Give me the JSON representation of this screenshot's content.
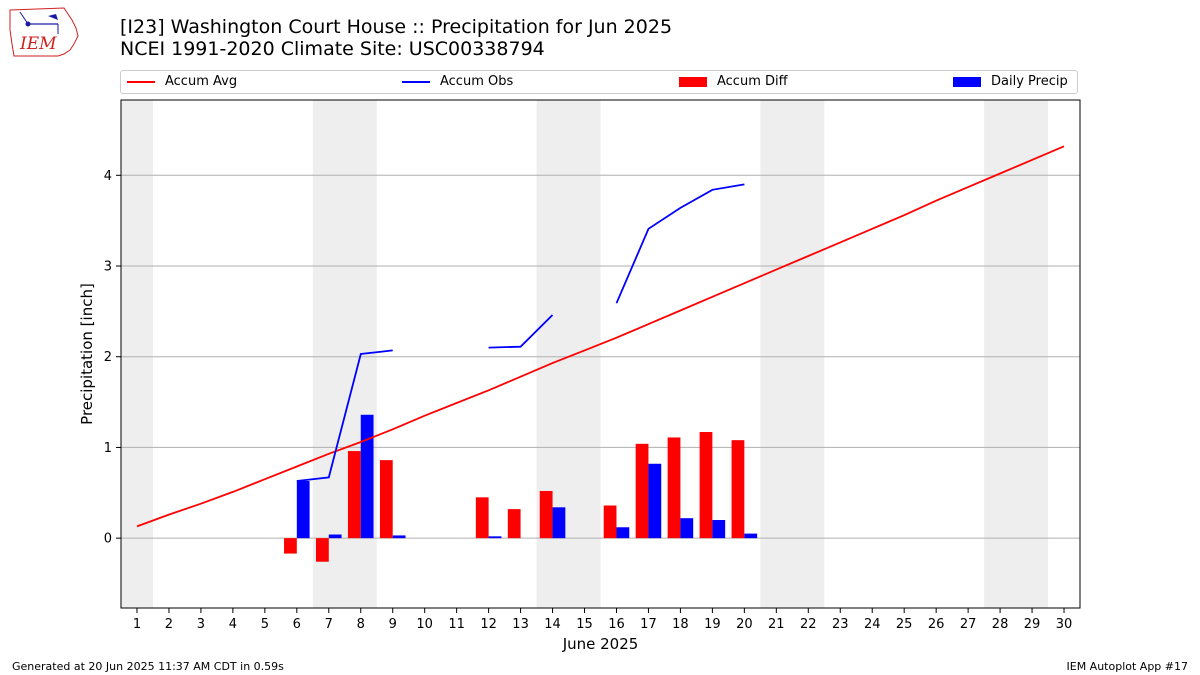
{
  "header": {
    "logo_text": "IEM",
    "title_line1": "[I23] Washington Court House :: Precipitation for Jun 2025",
    "title_line2": "NCEI 1991-2020 Climate Site: USC00338794"
  },
  "footer": {
    "left": "Generated at 20 Jun 2025 11:37 AM CDT in 0.59s",
    "right": "IEM Autoplot App #17"
  },
  "colors": {
    "accum_avg": "#ff0000",
    "accum_obs": "#0000ff",
    "accum_diff": "#ff0000",
    "daily_precip": "#0000ff",
    "weekend_shade": "#eeeeee",
    "grid": "#b0b0b0"
  },
  "chart_data": {
    "type": "bar+line",
    "xlabel": "June 2025",
    "ylabel": "Precipitation [inch]",
    "xlim": [
      0.5,
      30.5
    ],
    "ylim": [
      -0.77,
      4.83
    ],
    "yticks": [
      0,
      1,
      2,
      3,
      4
    ],
    "grid": "y",
    "legend_position": "top",
    "legend": [
      {
        "label": "Accum Avg",
        "kind": "line",
        "color": "#ff0000"
      },
      {
        "label": "Accum Obs",
        "kind": "line",
        "color": "#0000ff"
      },
      {
        "label": "Accum Diff",
        "kind": "bar",
        "color": "#ff0000"
      },
      {
        "label": "Daily Precip",
        "kind": "bar",
        "color": "#0000ff"
      }
    ],
    "days": [
      1,
      2,
      3,
      4,
      5,
      6,
      7,
      8,
      9,
      10,
      11,
      12,
      13,
      14,
      15,
      16,
      17,
      18,
      19,
      20,
      21,
      22,
      23,
      24,
      25,
      26,
      27,
      28,
      29,
      30
    ],
    "weekend_spans": [
      [
        0.5,
        1.5
      ],
      [
        6.5,
        8.5
      ],
      [
        13.5,
        15.5
      ],
      [
        20.5,
        22.5
      ],
      [
        27.5,
        29.5
      ]
    ],
    "accum_avg": [
      0.13,
      0.26,
      0.38,
      0.51,
      0.65,
      0.79,
      0.93,
      1.06,
      1.2,
      1.35,
      1.49,
      1.63,
      1.78,
      1.93,
      2.07,
      2.21,
      2.36,
      2.51,
      2.66,
      2.81,
      2.96,
      3.11,
      3.26,
      3.41,
      3.56,
      3.72,
      3.87,
      4.02,
      4.17,
      4.32
    ],
    "accum_obs_segments": [
      [
        [
          6,
          0.63
        ],
        [
          7,
          0.67
        ],
        [
          8,
          2.03
        ],
        [
          9,
          2.07
        ]
      ],
      [
        [
          12,
          2.1
        ],
        [
          13,
          2.11
        ],
        [
          14,
          2.46
        ]
      ],
      [
        [
          16,
          2.59
        ],
        [
          17,
          3.41
        ],
        [
          18,
          3.64
        ],
        [
          19,
          3.84
        ],
        [
          20,
          3.9
        ]
      ]
    ],
    "accum_diff": [
      {
        "day": 6,
        "value": -0.17
      },
      {
        "day": 7,
        "value": -0.26
      },
      {
        "day": 8,
        "value": 0.96
      },
      {
        "day": 9,
        "value": 0.86
      },
      {
        "day": 12,
        "value": 0.45
      },
      {
        "day": 13,
        "value": 0.32
      },
      {
        "day": 14,
        "value": 0.52
      },
      {
        "day": 16,
        "value": 0.36
      },
      {
        "day": 17,
        "value": 1.04
      },
      {
        "day": 18,
        "value": 1.11
      },
      {
        "day": 19,
        "value": 1.17
      },
      {
        "day": 20,
        "value": 1.08
      }
    ],
    "daily_precip": [
      {
        "day": 6,
        "value": 0.63
      },
      {
        "day": 7,
        "value": 0.04
      },
      {
        "day": 8,
        "value": 1.36
      },
      {
        "day": 9,
        "value": 0.03
      },
      {
        "day": 12,
        "value": 0.02
      },
      {
        "day": 14,
        "value": 0.34
      },
      {
        "day": 16,
        "value": 0.12
      },
      {
        "day": 17,
        "value": 0.82
      },
      {
        "day": 18,
        "value": 0.22
      },
      {
        "day": 19,
        "value": 0.2
      },
      {
        "day": 20,
        "value": 0.05
      }
    ]
  }
}
